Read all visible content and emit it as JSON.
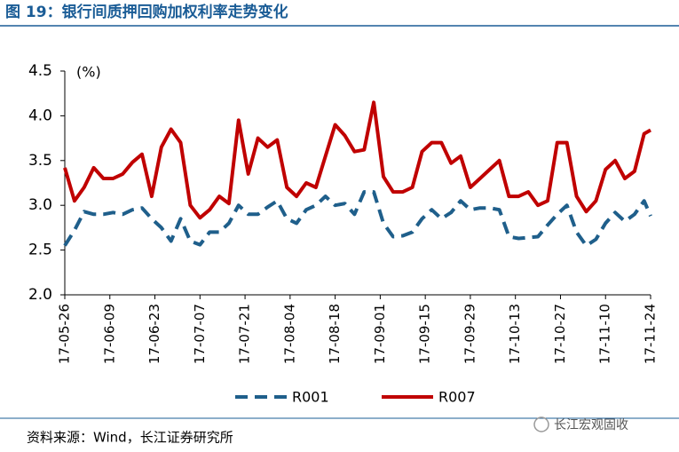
{
  "header": {
    "title": "图 19：银行间质押回购加权利率走势变化"
  },
  "chart_data": {
    "type": "line",
    "y_label": "(%)",
    "x": [
      "17-05-26",
      "17-05-29",
      "17-06-01",
      "17-06-04",
      "17-06-07",
      "17-06-10",
      "17-06-13",
      "17-06-16",
      "17-06-19",
      "17-06-22",
      "17-06-25",
      "17-06-28",
      "17-07-01",
      "17-07-04",
      "17-07-07",
      "17-07-10",
      "17-07-13",
      "17-07-16",
      "17-07-19",
      "17-07-22",
      "17-07-25",
      "17-07-28",
      "17-07-31",
      "17-08-03",
      "17-08-06",
      "17-08-09",
      "17-08-12",
      "17-08-15",
      "17-08-18",
      "17-08-21",
      "17-08-24",
      "17-08-27",
      "17-08-30",
      "17-09-02",
      "17-09-05",
      "17-09-08",
      "17-09-11",
      "17-09-14",
      "17-09-17",
      "17-09-20",
      "17-09-23",
      "17-09-26",
      "17-09-29",
      "17-10-02",
      "17-10-05",
      "17-10-08",
      "17-10-11",
      "17-10-14",
      "17-10-17",
      "17-10-20",
      "17-10-23",
      "17-10-26",
      "17-10-29",
      "17-11-01",
      "17-11-04",
      "17-11-07",
      "17-11-10",
      "17-11-13",
      "17-11-16",
      "17-11-19",
      "17-11-22",
      "17-11-24"
    ],
    "xticks": [
      "17-05-26",
      "17-06-09",
      "17-06-23",
      "17-07-07",
      "17-07-21",
      "17-08-04",
      "17-08-18",
      "17-09-01",
      "17-09-15",
      "17-09-29",
      "17-10-13",
      "17-10-27",
      "17-11-10",
      "17-11-24"
    ],
    "series": [
      {
        "name": "R001",
        "color": "#1f5f8b",
        "style": "dashed",
        "values": [
          2.55,
          2.72,
          2.93,
          2.9,
          2.9,
          2.92,
          2.9,
          2.95,
          2.97,
          2.85,
          2.75,
          2.6,
          2.85,
          2.6,
          2.56,
          2.7,
          2.7,
          2.8,
          3.0,
          2.9,
          2.9,
          2.98,
          3.05,
          2.85,
          2.8,
          2.95,
          3.0,
          3.1,
          3.0,
          3.02,
          2.9,
          3.15,
          3.15,
          2.8,
          2.65,
          2.66,
          2.7,
          2.85,
          2.95,
          2.85,
          2.92,
          3.05,
          2.95,
          2.97,
          2.97,
          2.95,
          2.65,
          2.63,
          2.64,
          2.65,
          2.78,
          2.9,
          3.0,
          2.7,
          2.55,
          2.62,
          2.8,
          2.92,
          2.82,
          2.9,
          3.05,
          2.88
        ]
      },
      {
        "name": "R007",
        "color": "#c00000",
        "style": "solid",
        "values": [
          3.42,
          3.05,
          3.2,
          3.42,
          3.3,
          3.3,
          3.35,
          3.48,
          3.57,
          3.1,
          3.65,
          3.85,
          3.7,
          3.0,
          2.86,
          2.95,
          3.1,
          3.02,
          3.95,
          3.35,
          3.75,
          3.65,
          3.73,
          3.2,
          3.1,
          3.25,
          3.2,
          3.55,
          3.9,
          3.78,
          3.6,
          3.62,
          4.15,
          3.32,
          3.15,
          3.15,
          3.2,
          3.6,
          3.7,
          3.7,
          3.47,
          3.55,
          3.2,
          3.3,
          3.4,
          3.5,
          3.1,
          3.1,
          3.15,
          3.0,
          3.05,
          3.7,
          3.7,
          3.1,
          2.93,
          3.05,
          3.4,
          3.5,
          3.3,
          3.38,
          3.8,
          3.84
        ]
      }
    ],
    "ylim": [
      2,
      4.5
    ],
    "yticks": [
      {
        "value": 2,
        "label": "2.0"
      },
      2.5,
      {
        "value": 3,
        "label": "3.0"
      },
      3.5,
      {
        "value": 4,
        "label": "4.0"
      },
      4.5
    ],
    "grid": false
  },
  "footer": {
    "source": "资料来源：Wind，长江证券研究所",
    "watermark": "长江宏观固收"
  }
}
